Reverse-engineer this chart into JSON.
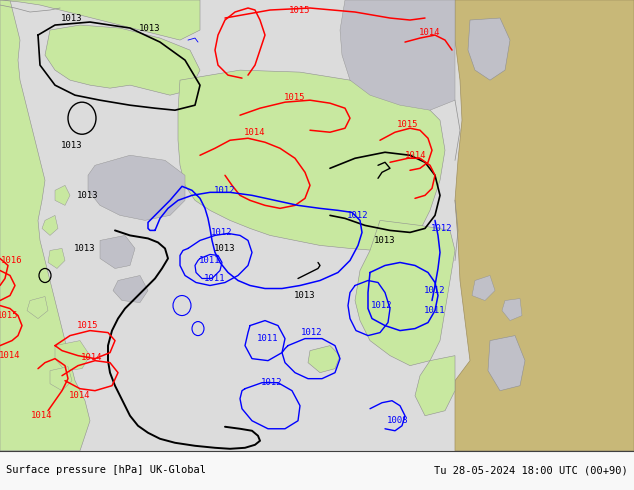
{
  "title_left": "Surface pressure [hPa] UK-Global",
  "title_right": "Tu 28-05-2024 18:00 UTC (00+90)",
  "bg_light_gray": "#e0e0e0",
  "bg_white_area": "#f0f0f0",
  "green_land": "#c8e8a0",
  "tan_land": "#c8b878",
  "gray_water": "#b8b8c8",
  "coast_color": "#909090",
  "font": "monospace",
  "fs": 6.5
}
